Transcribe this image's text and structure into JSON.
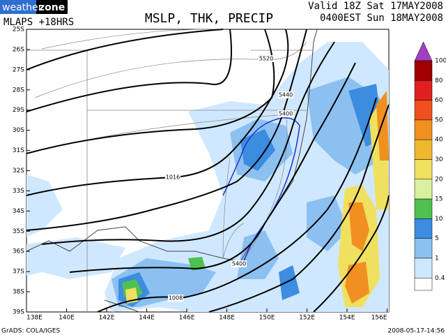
{
  "header": {
    "logo": [
      "weather",
      "zone"
    ],
    "model": "MLAPS +18HRS",
    "title": "MSLP, THK, PRECIP",
    "valid": "Valid 18Z Sat 17MAY2008",
    "local": "0400EST Sun 18MAY2008"
  },
  "map": {
    "lat_labels": [
      "25S",
      "26S",
      "27S",
      "28S",
      "29S",
      "30S",
      "31S",
      "32S",
      "33S",
      "34S",
      "35S",
      "36S",
      "37S",
      "38S",
      "39S"
    ],
    "lon_labels": [
      "138E",
      "140E",
      "142E",
      "144E",
      "146E",
      "148E",
      "150E",
      "152E",
      "154E",
      "156E"
    ],
    "contour_labels": [
      "5520",
      "5440",
      "5400",
      "1016",
      "5400",
      "1008"
    ]
  },
  "legend": {
    "top_color": "#a040c0",
    "labels": [
      100,
      80,
      60,
      50,
      40,
      30,
      20,
      15,
      10,
      5,
      1,
      0.4
    ],
    "colors": [
      "#a00000",
      "#e02020",
      "#f05020",
      "#f09020",
      "#f0b830",
      "#f0e060",
      "#d8f0a0",
      "#50c050",
      "#3c8ce0",
      "#8cc0f0",
      "#d0e8ff"
    ]
  },
  "footer": {
    "source": "GrADS: COLA/IGES",
    "timestamp": "2008-05-17-14:56"
  }
}
